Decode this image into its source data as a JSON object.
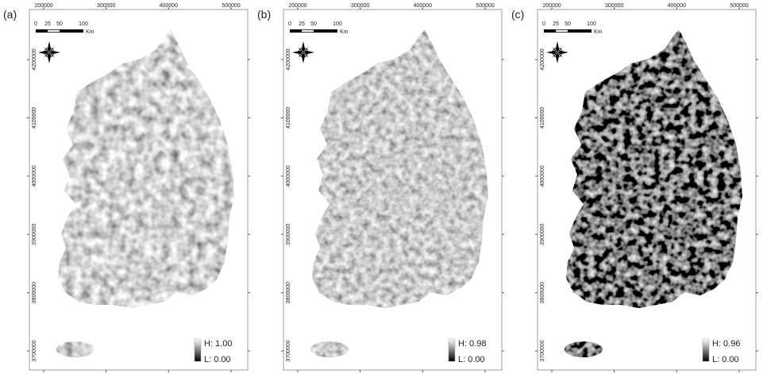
{
  "panels": [
    {
      "label": "(a)",
      "legend": {
        "high": "H: 1.00",
        "low": "L: 0.00"
      }
    },
    {
      "label": "(b)",
      "legend": {
        "high": "H: 0.98",
        "low": "L: 0.00"
      }
    },
    {
      "label": "(c)",
      "legend": {
        "high": "H: 0.96",
        "low": "L: 0.00"
      }
    }
  ],
  "x_ticks": [
    200000,
    300000,
    400000,
    500000
  ],
  "y_ticks": [
    4200000,
    4100000,
    4000000,
    3900000,
    3800000,
    3700000
  ],
  "scale_bar": {
    "labels": [
      "0",
      "25",
      "50",
      "100"
    ],
    "unit": "Km"
  }
}
